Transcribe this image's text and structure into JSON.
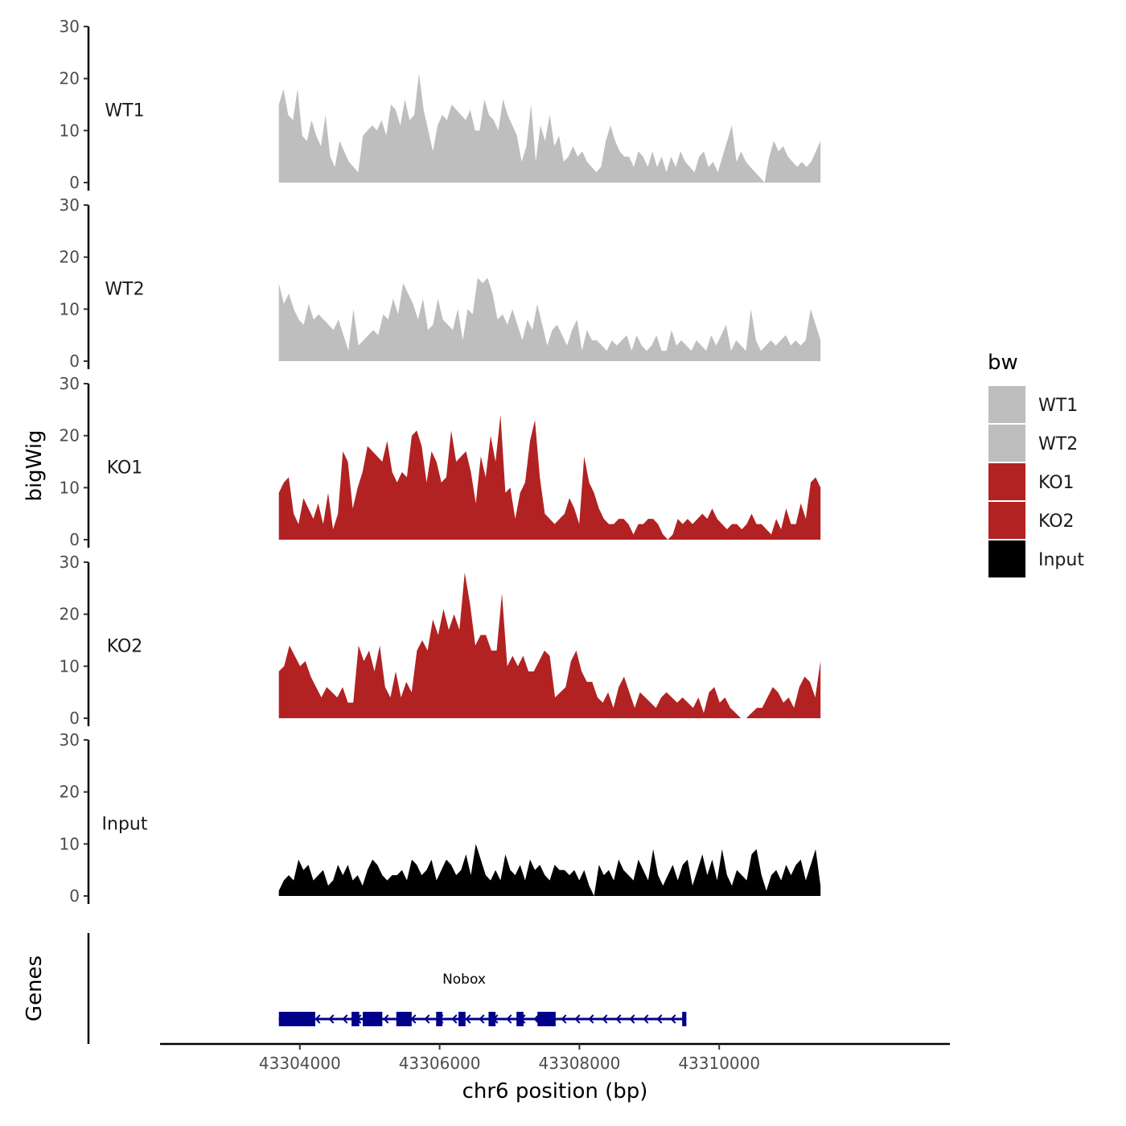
{
  "chart_data": {
    "type": "area",
    "title": "",
    "xlabel": "chr6 position (bp)",
    "ylabel": "bigWig",
    "genes_label": "Genes",
    "xlim": [
      43302000,
      43313300
    ],
    "ylim": [
      0,
      30
    ],
    "data_range": [
      43303700,
      43311450
    ],
    "x_ticks": [
      43304000,
      43306000,
      43308000,
      43310000
    ],
    "x_tick_labels": [
      "43304000",
      "43306000",
      "43308000",
      "43310000"
    ],
    "y_ticks": [
      0,
      10,
      20,
      30
    ],
    "y_tick_labels": [
      "0",
      "10",
      "20",
      "30"
    ],
    "legend": {
      "title": "bw",
      "entries": [
        {
          "label": "WT1",
          "color": "#bebebe"
        },
        {
          "label": "WT2",
          "color": "#bebebe"
        },
        {
          "label": "KO1",
          "color": "#b22222"
        },
        {
          "label": "KO2",
          "color": "#b22222"
        },
        {
          "label": "Input",
          "color": "#000000"
        }
      ]
    },
    "series": [
      {
        "name": "WT1",
        "color": "#bebebe",
        "values": [
          15,
          18,
          13,
          12,
          18,
          9,
          8,
          12,
          9,
          7,
          13,
          5,
          3,
          8,
          6,
          4,
          3,
          2,
          9,
          10,
          11,
          10,
          12,
          9,
          15,
          14,
          11,
          16,
          12,
          13,
          21,
          14,
          10,
          6,
          11,
          13,
          12,
          15,
          14,
          13,
          12,
          14,
          10,
          10,
          16,
          13,
          12,
          10,
          16,
          13,
          11,
          9,
          4,
          7,
          15,
          4,
          11,
          8,
          13,
          7,
          9,
          4,
          5,
          7,
          5,
          6,
          4,
          3,
          2,
          3,
          8,
          11,
          8,
          6,
          5,
          5,
          3,
          6,
          5,
          3,
          6,
          3,
          5,
          2,
          5,
          3,
          6,
          4,
          3,
          2,
          5,
          6,
          3,
          4,
          2,
          5,
          8,
          11,
          4,
          6,
          4,
          3,
          2,
          1,
          0,
          5,
          8,
          6,
          7,
          5,
          4,
          3,
          4,
          3,
          4,
          6,
          8
        ]
      },
      {
        "name": "WT2",
        "color": "#bebebe",
        "values": [
          15,
          11,
          13,
          10,
          8,
          7,
          11,
          8,
          9,
          8,
          7,
          6,
          8,
          5,
          2,
          10,
          3,
          4,
          5,
          6,
          5,
          9,
          8,
          12,
          9,
          15,
          13,
          11,
          8,
          12,
          6,
          7,
          12,
          8,
          7,
          6,
          10,
          4,
          10,
          9,
          16,
          15,
          16,
          13,
          8,
          9,
          7,
          10,
          7,
          4,
          8,
          6,
          11,
          7,
          3,
          6,
          7,
          5,
          3,
          6,
          8,
          2,
          6,
          4,
          4,
          3,
          2,
          4,
          3,
          4,
          5,
          2,
          5,
          3,
          2,
          3,
          5,
          2,
          2,
          6,
          3,
          4,
          3,
          2,
          4,
          3,
          2,
          5,
          3,
          5,
          7,
          2,
          4,
          3,
          2,
          10,
          4,
          2,
          3,
          4,
          3,
          4,
          5,
          3,
          4,
          3,
          4,
          10,
          7,
          4
        ]
      },
      {
        "name": "KO1",
        "color": "#b22222",
        "values": [
          9,
          11,
          12,
          5,
          3,
          8,
          6,
          4,
          7,
          3,
          9,
          2,
          5,
          17,
          15,
          6,
          10,
          13,
          18,
          17,
          16,
          15,
          19,
          13,
          11,
          13,
          12,
          20,
          21,
          18,
          11,
          17,
          15,
          11,
          12,
          21,
          15,
          16,
          17,
          13,
          7,
          16,
          12,
          20,
          15,
          24,
          9,
          10,
          4,
          9,
          11,
          19,
          23,
          12,
          5,
          4,
          3,
          4,
          5,
          8,
          6,
          3,
          16,
          11,
          9,
          6,
          4,
          3,
          3,
          4,
          4,
          3,
          1,
          3,
          3,
          4,
          4,
          3,
          1,
          0,
          1,
          4,
          3,
          4,
          3,
          4,
          5,
          4,
          6,
          4,
          3,
          2,
          3,
          3,
          2,
          3,
          5,
          3,
          3,
          2,
          1,
          4,
          2,
          6,
          3,
          3,
          7,
          4,
          11,
          12,
          10
        ]
      },
      {
        "name": "KO2",
        "color": "#b22222",
        "values": [
          9,
          10,
          14,
          12,
          10,
          11,
          8,
          6,
          4,
          6,
          5,
          4,
          6,
          3,
          3,
          14,
          11,
          13,
          9,
          14,
          6,
          4,
          9,
          4,
          7,
          5,
          13,
          15,
          13,
          19,
          16,
          21,
          17,
          20,
          17,
          28,
          22,
          14,
          16,
          16,
          13,
          13,
          24,
          10,
          12,
          10,
          12,
          9,
          9,
          11,
          13,
          12,
          4,
          5,
          6,
          11,
          13,
          9,
          7,
          7,
          4,
          3,
          5,
          2,
          6,
          8,
          5,
          2,
          5,
          4,
          3,
          2,
          4,
          5,
          4,
          3,
          4,
          3,
          2,
          4,
          1,
          5,
          6,
          3,
          4,
          2,
          1,
          0,
          0,
          1,
          2,
          2,
          4,
          6,
          5,
          3,
          4,
          2,
          6,
          8,
          7,
          4,
          11
        ]
      },
      {
        "name": "Input",
        "color": "#000000",
        "values": [
          1,
          3,
          4,
          3,
          7,
          5,
          6,
          3,
          4,
          5,
          2,
          3,
          6,
          4,
          6,
          3,
          4,
          2,
          5,
          7,
          6,
          4,
          3,
          4,
          4,
          5,
          3,
          7,
          6,
          4,
          5,
          7,
          3,
          5,
          7,
          6,
          4,
          5,
          8,
          4,
          10,
          7,
          4,
          3,
          5,
          3,
          8,
          5,
          4,
          6,
          3,
          7,
          5,
          6,
          4,
          3,
          6,
          5,
          5,
          4,
          5,
          3,
          5,
          2,
          0,
          6,
          4,
          5,
          3,
          7,
          5,
          4,
          3,
          7,
          5,
          3,
          9,
          4,
          2,
          4,
          6,
          3,
          6,
          7,
          2,
          5,
          8,
          4,
          7,
          3,
          9,
          4,
          2,
          5,
          4,
          3,
          8,
          9,
          4,
          1,
          4,
          5,
          3,
          6,
          4,
          6,
          7,
          3,
          6,
          9,
          2
        ]
      }
    ],
    "gene": {
      "name": "Nobox",
      "start": 43303700,
      "end": 43309530,
      "strand": "-",
      "color": "#00008b",
      "exons": [
        [
          43303700,
          43304220
        ],
        [
          43304740,
          43304850
        ],
        [
          43304900,
          43305180
        ],
        [
          43305380,
          43305600
        ],
        [
          43305950,
          43306040
        ],
        [
          43306270,
          43306370
        ],
        [
          43306700,
          43306800
        ],
        [
          43307100,
          43307200
        ],
        [
          43307400,
          43307660
        ],
        [
          43309470,
          43309530
        ]
      ]
    }
  }
}
